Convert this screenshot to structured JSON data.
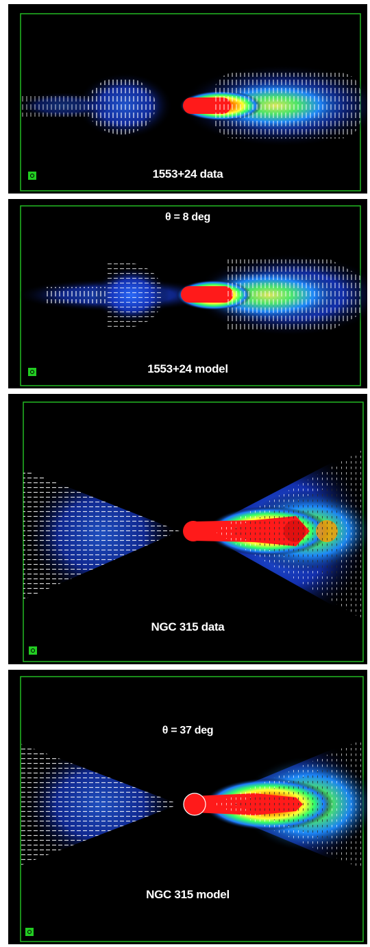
{
  "panels": [
    {
      "id": "p1",
      "caption": "1553+24 data",
      "angle": ""
    },
    {
      "id": "p2",
      "caption": "1553+24 model",
      "angle": "θ = 8 deg"
    },
    {
      "id": "p3",
      "caption": "NGC 315 data",
      "angle": ""
    },
    {
      "id": "p4",
      "caption": "NGC 315 model",
      "angle": "θ = 37 deg"
    }
  ],
  "colors": {
    "frame": "#22bb22",
    "background": "#000000",
    "vectors": "#ffffff",
    "core": "#ff1a1a"
  }
}
